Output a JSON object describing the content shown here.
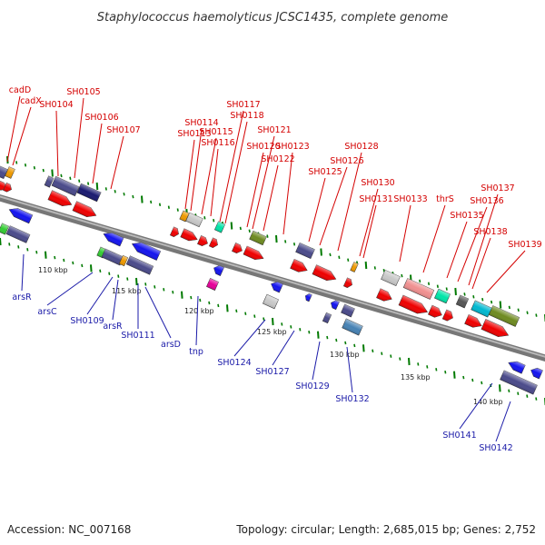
{
  "title": "Staphylococcus haemolyticus JCSC1435, complete genome",
  "footer": {
    "accession": "Accession: NC_007168",
    "summary": "Topology: circular; Length: 2,685,015 bp; Genes: 2,752"
  },
  "ticks": [
    "110 kbp",
    "115 kbp",
    "120 kbp",
    "125 kbp",
    "130 kbp",
    "135 kbp",
    "140 kbp"
  ],
  "labels_top": [
    "cadD",
    "cadX",
    "SH0104",
    "SH0105",
    "SH0106",
    "SH0107",
    "SH0113",
    "SH0114",
    "SH0115",
    "SH0116",
    "SH0117",
    "SH0118",
    "SH0120",
    "SH0121",
    "SH0122",
    "SH0123",
    "SH0125",
    "SH0126",
    "SH0128",
    "SH0130",
    "SH0131",
    "SH0133",
    "thrS",
    "SH0135",
    "SH0136",
    "SH0137",
    "SH0138",
    "SH0139"
  ],
  "labels_bottom": [
    "arsR",
    "arsC",
    "SH0109",
    "arsR",
    "SH0111",
    "arsD",
    "tnp",
    "SH0124",
    "SH0127",
    "SH0129",
    "SH0132",
    "SH0141",
    "SH0142"
  ],
  "colors": {
    "backbone": "#8c8c8c",
    "forward_arrow": "#ee0000",
    "reverse_arrow": "#1414ee",
    "top_label": "#d40000",
    "bottom_label": "#1a1aa8",
    "tick": "#007a00"
  }
}
